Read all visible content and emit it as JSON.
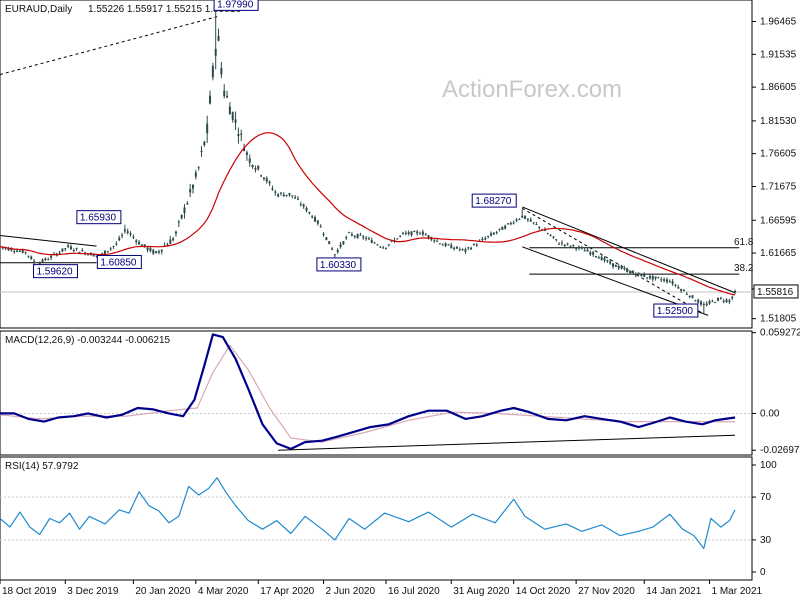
{
  "header": {
    "symbol": "EURAUD,Daily",
    "ohlc": "1.55226 1.55917 1.55215 1.55816",
    "watermark": "ActionForex.com"
  },
  "chart_data": [
    {
      "type": "candlestick",
      "panel": "price",
      "yticks": [
        1.51805,
        1.56272,
        1.61665,
        1.66595,
        1.71675,
        1.76605,
        1.8153,
        1.86605,
        1.91535,
        1.96465
      ],
      "ytick_labels": [
        "1.51805",
        "1.56272",
        "1.61665",
        "1.66595",
        "1.71675",
        "1.76605",
        "1.81530",
        "1.86605",
        "1.91535",
        "1.96465"
      ],
      "ylim": [
        1.504,
        1.997
      ],
      "last_price": 1.55816,
      "last_price_label": "1.55816",
      "ma_color": "#cc0000",
      "candle_color": "#2a4a4a",
      "key_levels": [
        {
          "label": "1.97990",
          "value": 1.9799,
          "x": "2020-03-19"
        },
        {
          "label": "1.65930",
          "value": 1.6593,
          "x": "2020-01-14"
        },
        {
          "label": "1.60850",
          "value": 1.6085,
          "x": "2019-12-27"
        },
        {
          "label": "1.59620",
          "value": 1.5962,
          "x": "2019-11-12"
        },
        {
          "label": "1.60330",
          "value": 1.6033,
          "x": "2020-06-10"
        },
        {
          "label": "1.68270",
          "value": 1.6827,
          "x": "2020-10-20"
        },
        {
          "label": "1.52500",
          "value": 1.525,
          "x": "2021-02-25"
        }
      ],
      "fib_levels": [
        {
          "label": "61.8",
          "value": 1.6246
        },
        {
          "label": "38.2",
          "value": 1.585
        }
      ]
    },
    {
      "type": "line",
      "panel": "macd",
      "label": "MACD(12,26,9) -0.003244 -0.006215",
      "yticks": [
        0.059272,
        0.0,
        -0.026978
      ],
      "ytick_labels": [
        "0.059272",
        "0.00",
        "-0.026978"
      ],
      "ylim": [
        -0.0305,
        0.0605
      ],
      "macd_color": "#00008b",
      "signal_color": "#d8a8b8",
      "macd_points": [
        [
          "2019-10-18",
          0.0
        ],
        [
          "2019-10-28",
          0.0
        ],
        [
          "2019-11-07",
          -0.004
        ],
        [
          "2019-11-18",
          -0.006
        ],
        [
          "2019-11-28",
          -0.003
        ],
        [
          "2019-12-09",
          -0.002
        ],
        [
          "2019-12-19",
          0.0
        ],
        [
          "2020-01-01",
          -0.003
        ],
        [
          "2020-01-12",
          -0.001
        ],
        [
          "2020-01-23",
          0.004
        ],
        [
          "2020-02-03",
          0.003
        ],
        [
          "2020-02-14",
          0.0
        ],
        [
          "2020-02-24",
          -0.002
        ],
        [
          "2020-03-03",
          0.01
        ],
        [
          "2020-03-10",
          0.035
        ],
        [
          "2020-03-16",
          0.058
        ],
        [
          "2020-03-23",
          0.056
        ],
        [
          "2020-04-01",
          0.04
        ],
        [
          "2020-04-10",
          0.018
        ],
        [
          "2020-04-20",
          -0.008
        ],
        [
          "2020-04-30",
          -0.022
        ],
        [
          "2020-05-10",
          -0.026
        ],
        [
          "2020-05-20",
          -0.021
        ],
        [
          "2020-06-01",
          -0.02
        ],
        [
          "2020-06-12",
          -0.017
        ],
        [
          "2020-06-25",
          -0.013
        ],
        [
          "2020-07-05",
          -0.01
        ],
        [
          "2020-07-18",
          -0.008
        ],
        [
          "2020-08-01",
          -0.002
        ],
        [
          "2020-08-15",
          0.002
        ],
        [
          "2020-08-28",
          0.002
        ],
        [
          "2020-09-10",
          -0.004
        ],
        [
          "2020-09-22",
          -0.002
        ],
        [
          "2020-10-05",
          0.002
        ],
        [
          "2020-10-14",
          0.004
        ],
        [
          "2020-10-25",
          0.001
        ],
        [
          "2020-11-07",
          -0.004
        ],
        [
          "2020-11-20",
          -0.005
        ],
        [
          "2020-12-03",
          -0.002
        ],
        [
          "2020-12-15",
          -0.004
        ],
        [
          "2020-12-28",
          -0.006
        ],
        [
          "2021-01-10",
          -0.01
        ],
        [
          "2021-01-20",
          -0.007
        ],
        [
          "2021-02-01",
          -0.003
        ],
        [
          "2021-02-12",
          -0.006
        ],
        [
          "2021-02-24",
          -0.008
        ],
        [
          "2021-03-05",
          -0.005
        ],
        [
          "2021-03-12",
          -0.004
        ],
        [
          "2021-03-19",
          -0.003
        ]
      ],
      "signal_points": [
        [
          "2019-10-18",
          -0.001
        ],
        [
          "2019-11-15",
          -0.004
        ],
        [
          "2019-12-15",
          -0.002
        ],
        [
          "2020-01-15",
          -0.002
        ],
        [
          "2020-02-14",
          0.002
        ],
        [
          "2020-03-05",
          0.004
        ],
        [
          "2020-03-16",
          0.03
        ],
        [
          "2020-03-28",
          0.05
        ],
        [
          "2020-04-10",
          0.032
        ],
        [
          "2020-04-25",
          0.004
        ],
        [
          "2020-05-10",
          -0.018
        ],
        [
          "2020-06-01",
          -0.021
        ],
        [
          "2020-07-01",
          -0.014
        ],
        [
          "2020-08-01",
          -0.005
        ],
        [
          "2020-09-01",
          0.001
        ],
        [
          "2020-10-01",
          0.0
        ],
        [
          "2020-11-01",
          -0.002
        ],
        [
          "2020-12-01",
          -0.004
        ],
        [
          "2021-01-01",
          -0.006
        ],
        [
          "2021-02-01",
          -0.006
        ],
        [
          "2021-03-01",
          -0.006
        ],
        [
          "2021-03-19",
          -0.0062
        ]
      ],
      "trendline": [
        [
          "2020-05-01",
          -0.027
        ],
        [
          "2021-03-19",
          -0.016
        ]
      ]
    },
    {
      "type": "line",
      "panel": "rsi",
      "label": "RSI(14) 57.9792",
      "yticks": [
        100,
        70,
        30,
        0
      ],
      "ytick_labels": [
        "100",
        "70",
        "30",
        "0"
      ],
      "ylim": [
        0,
        100
      ],
      "rsi_color": "#1f8ad2",
      "rsi_points": [
        [
          "2019-10-18",
          50
        ],
        [
          "2019-10-25",
          42
        ],
        [
          "2019-11-01",
          56
        ],
        [
          "2019-11-08",
          42
        ],
        [
          "2019-11-15",
          35
        ],
        [
          "2019-11-22",
          50
        ],
        [
          "2019-11-29",
          46
        ],
        [
          "2019-12-06",
          55
        ],
        [
          "2019-12-13",
          40
        ],
        [
          "2019-12-20",
          52
        ],
        [
          "2019-12-31",
          45
        ],
        [
          "2020-01-10",
          58
        ],
        [
          "2020-01-17",
          55
        ],
        [
          "2020-01-24",
          75
        ],
        [
          "2020-01-31",
          62
        ],
        [
          "2020-02-07",
          57
        ],
        [
          "2020-02-14",
          46
        ],
        [
          "2020-02-21",
          52
        ],
        [
          "2020-02-28",
          80
        ],
        [
          "2020-03-06",
          72
        ],
        [
          "2020-03-13",
          78
        ],
        [
          "2020-03-19",
          88
        ],
        [
          "2020-03-25",
          75
        ],
        [
          "2020-04-01",
          62
        ],
        [
          "2020-04-10",
          48
        ],
        [
          "2020-04-20",
          40
        ],
        [
          "2020-04-30",
          48
        ],
        [
          "2020-05-10",
          36
        ],
        [
          "2020-05-20",
          52
        ],
        [
          "2020-06-01",
          40
        ],
        [
          "2020-06-10",
          30
        ],
        [
          "2020-06-20",
          50
        ],
        [
          "2020-07-01",
          40
        ],
        [
          "2020-07-15",
          55
        ],
        [
          "2020-08-01",
          47
        ],
        [
          "2020-08-15",
          56
        ],
        [
          "2020-08-31",
          42
        ],
        [
          "2020-09-15",
          54
        ],
        [
          "2020-10-01",
          46
        ],
        [
          "2020-10-14",
          68
        ],
        [
          "2020-10-22",
          52
        ],
        [
          "2020-11-05",
          40
        ],
        [
          "2020-11-20",
          45
        ],
        [
          "2020-12-01",
          38
        ],
        [
          "2020-12-15",
          44
        ],
        [
          "2020-12-28",
          34
        ],
        [
          "2021-01-10",
          38
        ],
        [
          "2021-01-20",
          42
        ],
        [
          "2021-02-01",
          54
        ],
        [
          "2021-02-10",
          40
        ],
        [
          "2021-02-18",
          34
        ],
        [
          "2021-02-25",
          22
        ],
        [
          "2021-03-02",
          50
        ],
        [
          "2021-03-09",
          42
        ],
        [
          "2021-03-15",
          48
        ],
        [
          "2021-03-19",
          58
        ]
      ]
    }
  ],
  "x_axis": {
    "tick_labels": [
      "18 Oct 2019",
      "3 Dec 2019",
      "20 Jan 2020",
      "4 Mar 2020",
      "17 Apr 2020",
      "2 Jun 2020",
      "16 Jul 2020",
      "31 Aug 2020",
      "14 Oct 2020",
      "27 Nov 2020",
      "14 Jan 2021",
      "1 Mar 2021"
    ],
    "tick_dates": [
      "2019-10-18",
      "2019-12-03",
      "2020-01-20",
      "2020-03-04",
      "2020-04-17",
      "2020-06-02",
      "2020-07-16",
      "2020-08-31",
      "2020-10-14",
      "2020-11-27",
      "2021-01-14",
      "2021-03-01"
    ],
    "range": [
      "2019-10-18",
      "2021-03-26"
    ]
  }
}
